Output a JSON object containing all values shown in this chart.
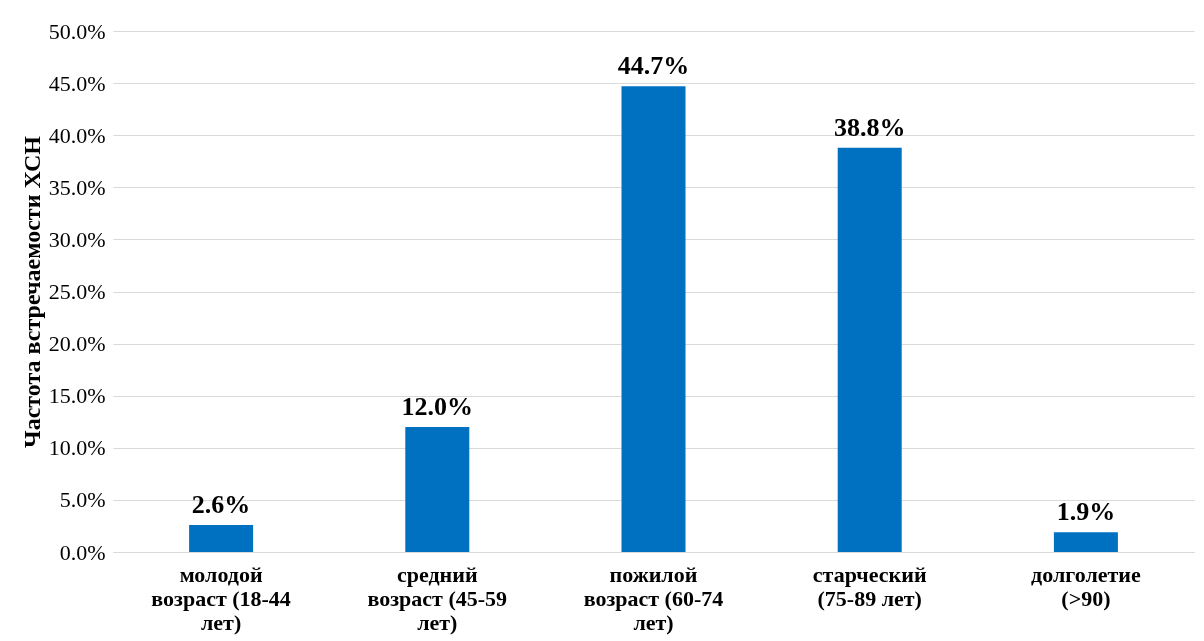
{
  "chart_data": {
    "type": "bar",
    "ylabel": "Частота встречаемости ХСН",
    "categories": [
      "молодой возраст (18-44 лет)",
      "средний возраст (45-59 лет)",
      "пожилой возраст (60-74 лет)",
      "старческий (75-89 лет)",
      "долголетие (>90)"
    ],
    "values": [
      2.6,
      12.0,
      44.7,
      38.8,
      1.9
    ],
    "value_labels": [
      "2.6%",
      "12.0%",
      "44.7%",
      "38.8%",
      "1.9%"
    ],
    "color": "#0070c0",
    "ylim": [
      0,
      50
    ],
    "yticks": [
      {
        "value": 0,
        "label": "0.0%"
      },
      {
        "value": 5,
        "label": "5.0%"
      },
      {
        "value": 10,
        "label": "10.0%"
      },
      {
        "value": 15,
        "label": "15.0%"
      },
      {
        "value": 20,
        "label": "20.0%"
      },
      {
        "value": 25,
        "label": "25.0%"
      },
      {
        "value": 30,
        "label": "30.0%"
      },
      {
        "value": 35,
        "label": "35.0%"
      },
      {
        "value": 40,
        "label": "40.0%"
      },
      {
        "value": 45,
        "label": "45.0%"
      },
      {
        "value": 50,
        "label": "50.0%"
      }
    ],
    "grid": "y"
  }
}
